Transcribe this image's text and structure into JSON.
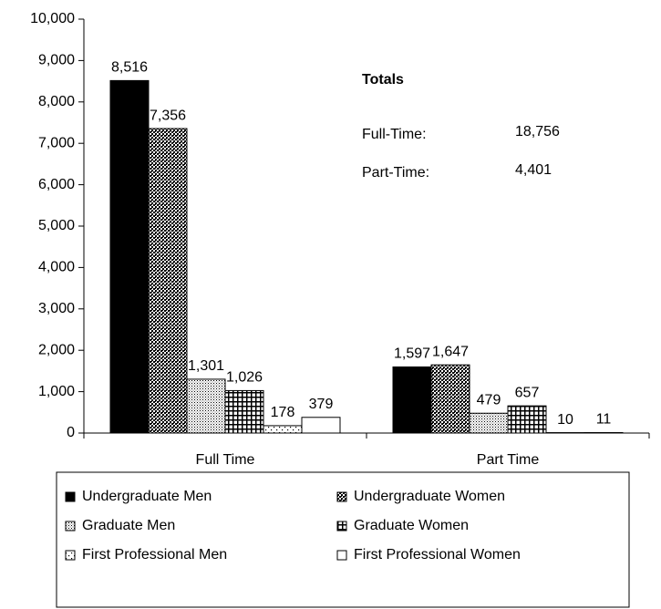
{
  "chart_data": {
    "type": "bar",
    "categories": [
      "Full Time",
      "Part Time"
    ],
    "series": [
      {
        "name": "Undergraduate Men",
        "color": "#000000",
        "pattern": "solid",
        "values": [
          8516,
          1597
        ],
        "value_labels": [
          "8,516",
          "1,597"
        ]
      },
      {
        "name": "Undergraduate Women",
        "color": "#000000",
        "pattern": "checker",
        "values": [
          7356,
          1647
        ],
        "value_labels": [
          "7,356",
          "1,647"
        ]
      },
      {
        "name": "Graduate Men",
        "color": "#000000",
        "pattern": "dots",
        "values": [
          1301,
          479
        ],
        "value_labels": [
          "1,301",
          "479"
        ]
      },
      {
        "name": "Graduate Women",
        "color": "#000000",
        "pattern": "grid",
        "values": [
          1026,
          657
        ],
        "value_labels": [
          "1,026",
          "657"
        ]
      },
      {
        "name": "First Professional Men",
        "color": "#000000",
        "pattern": "sparse-dots",
        "values": [
          178,
          10
        ],
        "value_labels": [
          "178",
          "10"
        ]
      },
      {
        "name": "First Professional Women",
        "color": "#000000",
        "pattern": "none",
        "values": [
          379,
          11
        ],
        "value_labels": [
          "379",
          "11"
        ]
      }
    ],
    "ylim": [
      0,
      10000
    ],
    "yticks": [
      0,
      {
        "value": 1000,
        "label": "1,000"
      },
      {
        "value": 2000,
        "label": "2,000"
      },
      {
        "value": 3000,
        "label": "3,000"
      },
      {
        "value": 4000,
        "label": "4,000"
      },
      {
        "value": 5000,
        "label": "5,000"
      },
      {
        "value": 6000,
        "label": "6,000"
      },
      {
        "value": 7000,
        "label": "7,000"
      },
      {
        "value": 8000,
        "label": "8,000"
      },
      {
        "value": 9000,
        "label": "9,000"
      },
      {
        "value": 10000,
        "label": "10,000"
      }
    ],
    "grid": false,
    "legend": "bottom",
    "annotation": {
      "title": "Totals",
      "items": [
        {
          "label": "Full-Time:",
          "value": "18,756"
        },
        {
          "label": "Part-Time:",
          "value": "4,401"
        }
      ]
    }
  }
}
